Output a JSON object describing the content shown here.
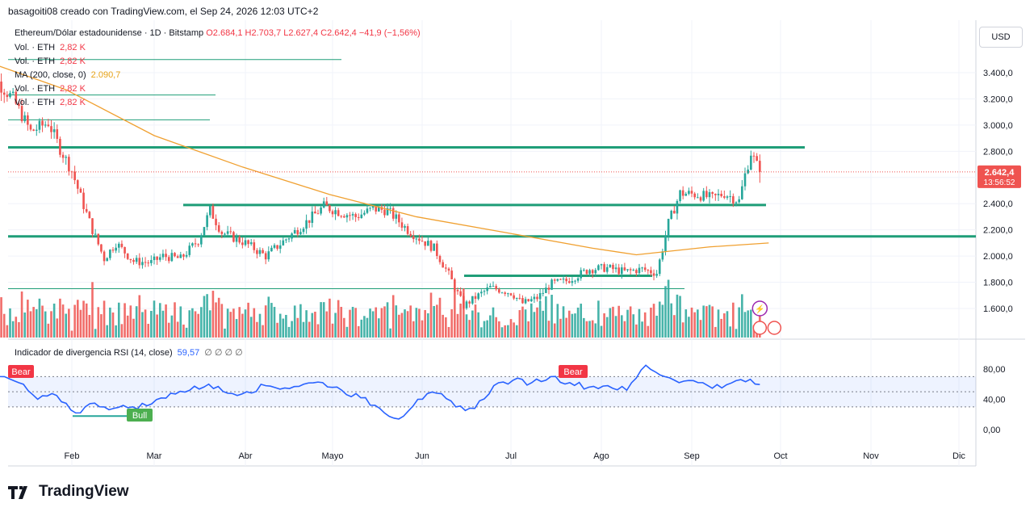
{
  "header": {
    "credit": "basagoiti08 creado con TradingView.com, el Sep 24, 2026 12:03 UTC+2"
  },
  "legend": {
    "symbol": "Ethereum/Dólar estadounidense · 1D · Bitstamp",
    "ohlc": "O2.684,1  H2.703,7  L2.627,4  C2.642,4  −41,9 (−1,56%)",
    "vol_lines": [
      {
        "label": "Vol. · ETH",
        "value": "2,82 K"
      },
      {
        "label": "Vol. · ETH",
        "value": "2,82 K"
      },
      {
        "label": "MA (200, close, 0)",
        "value": "2.090,7"
      },
      {
        "label": "Vol. · ETH",
        "value": "2,82 K"
      },
      {
        "label": "Vol. · ETH",
        "value": "2,82 K"
      }
    ],
    "rsi_label": "Indicador de divergencia RSI (14, close)",
    "rsi_value": "59,57",
    "rsi_zeros": "∅ ∅ ∅ ∅"
  },
  "currency_button": "USD",
  "price_tag": {
    "value": "2.642,4",
    "countdown": "13:56:52"
  },
  "signals": {
    "bear": "Bear",
    "bull": "Bull"
  },
  "branding": "TradingView",
  "colors": {
    "up": "#26a69a",
    "down": "#ef5350",
    "ma": "#f0a030",
    "rsi": "#2962ff",
    "level": "#1f9e78"
  },
  "chart_data": [
    {
      "type": "candlestick",
      "title": "Ethereum/Dólar estadounidense · 1D · Bitstamp",
      "x_ticks": [
        "Feb",
        "Mar",
        "Abr",
        "Mayo",
        "Jun",
        "Jul",
        "Ago",
        "Sep",
        "Oct",
        "Nov",
        "Dic"
      ],
      "y_ticks": [
        "1.600,0",
        "1.800,0",
        "2.000,0",
        "2.200,0",
        "2.400,0",
        "2.600,0",
        "2.800,0",
        "3.000,0",
        "3.200,0",
        "3.400,0"
      ],
      "ylim": [
        1400,
        3600
      ],
      "close_path": [
        [
          "Jan 01",
          3080
        ],
        [
          "Jan 06",
          3350
        ],
        [
          "Jan 12",
          3200
        ],
        [
          "Jan 18",
          2950
        ],
        [
          "Jan 24",
          3020
        ],
        [
          "Jan 28",
          2820
        ],
        [
          "Feb 01",
          2650
        ],
        [
          "Feb 04",
          2450
        ],
        [
          "Feb 08",
          2200
        ],
        [
          "Feb 12",
          1980
        ],
        [
          "Feb 16",
          2100
        ],
        [
          "Feb 22",
          1960
        ],
        [
          "Feb 28",
          1950
        ],
        [
          "Mar 04",
          2000
        ],
        [
          "Mar 10",
          1980
        ],
        [
          "Mar 16",
          2120
        ],
        [
          "Mar 20",
          2350
        ],
        [
          "Mar 24",
          2180
        ],
        [
          "Apr 01",
          2100
        ],
        [
          "Apr 08",
          2000
        ],
        [
          "Apr 15",
          2130
        ],
        [
          "Apr 22",
          2260
        ],
        [
          "Apr 28",
          2380
        ],
        [
          "May 03",
          2340
        ],
        [
          "May 09",
          2300
        ],
        [
          "May 15",
          2360
        ],
        [
          "May 20",
          2350
        ],
        [
          "May 27",
          2200
        ],
        [
          "Jun 01",
          2120
        ],
        [
          "Jun 05",
          2060
        ],
        [
          "Jun 10",
          1860
        ],
        [
          "Jun 15",
          1620
        ],
        [
          "Jun 20",
          1700
        ],
        [
          "Jun 24",
          1760
        ],
        [
          "Jul 01",
          1720
        ],
        [
          "Jul 05",
          1640
        ],
        [
          "Jul 10",
          1680
        ],
        [
          "Jul 15",
          1790
        ],
        [
          "Jul 20",
          1810
        ],
        [
          "Jul 28",
          1900
        ],
        [
          "Aug 03",
          1910
        ],
        [
          "Aug 09",
          1880
        ],
        [
          "Aug 15",
          1900
        ],
        [
          "Aug 20",
          1870
        ],
        [
          "Aug 24",
          2250
        ],
        [
          "Aug 28",
          2480
        ],
        [
          "Sep 03",
          2470
        ],
        [
          "Sep 08",
          2440
        ],
        [
          "Sep 12",
          2480
        ],
        [
          "Sep 17",
          2420
        ],
        [
          "Sep 19",
          2620
        ],
        [
          "Sep 21",
          2790
        ],
        [
          "Sep 24",
          2642.4
        ]
      ],
      "horizontal_levels": [
        2830,
        2390,
        2150,
        1850,
        3040,
        3230,
        3500
      ],
      "ma200": [
        [
          1,
          3500
        ],
        [
          30,
          3270
        ],
        [
          60,
          2920
        ],
        [
          90,
          2680
        ],
        [
          120,
          2470
        ],
        [
          150,
          2300
        ],
        [
          180,
          2180
        ],
        [
          210,
          2060
        ],
        [
          225,
          2010
        ],
        [
          250,
          2070
        ],
        [
          270,
          2100
        ]
      ],
      "last_price": 2642.4
    },
    {
      "type": "line",
      "title": "Indicador de divergencia RSI (14, close)",
      "y_ticks": [
        "0,00",
        "40,00",
        "80,00"
      ],
      "ylim": [
        -10,
        100
      ],
      "series": [
        {
          "name": "RSI",
          "values": [
            50,
            70,
            62,
            40,
            45,
            22,
            35,
            28,
            30,
            34,
            48,
            52,
            60,
            48,
            50,
            58,
            55,
            60,
            62,
            52,
            42,
            28,
            14,
            40,
            48,
            30,
            28,
            58,
            65,
            62,
            70,
            62,
            56,
            58,
            52,
            85,
            70,
            64,
            62,
            55,
            66,
            59.57
          ]
        }
      ],
      "overbought": 70,
      "oversold": 30,
      "mid": 50
    }
  ]
}
